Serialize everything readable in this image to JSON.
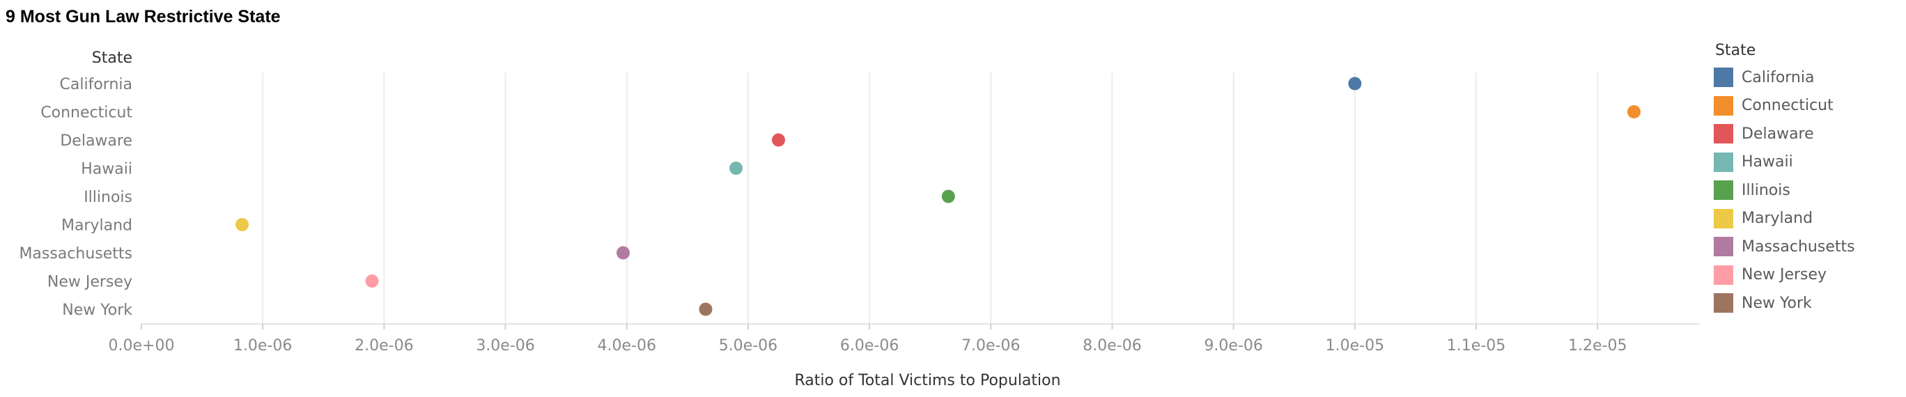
{
  "chart_data": {
    "type": "scatter",
    "title": "9 Most Gun Law Restrictive State",
    "ylabel": "State",
    "xlabel": "Ratio of Total Victims to Population",
    "xlim": [
      0,
      1.29e-05
    ],
    "xticks": [
      0,
      1e-06,
      2e-06,
      3e-06,
      4e-06,
      5e-06,
      6e-06,
      7e-06,
      8e-06,
      9e-06,
      1e-05,
      1.1e-05,
      1.2e-05
    ],
    "xtick_labels": [
      "0.0e+00",
      "1.0e-06",
      "2.0e-06",
      "3.0e-06",
      "4.0e-06",
      "5.0e-06",
      "6.0e-06",
      "7.0e-06",
      "8.0e-06",
      "9.0e-06",
      "1.0e-05",
      "1.1e-05",
      "1.2e-05"
    ],
    "grid": true,
    "legend_title": "State",
    "legend_position": "right",
    "categories": [
      "California",
      "Connecticut",
      "Delaware",
      "Hawaii",
      "Illinois",
      "Maryland",
      "Massachusetts",
      "New Jersey",
      "New York"
    ],
    "values": [
      1e-05,
      1.23e-05,
      5.25e-06,
      4.9e-06,
      6.65e-06,
      8.3e-07,
      3.97e-06,
      1.9e-06,
      4.65e-06
    ],
    "colors": [
      "#4e79a7",
      "#f28e2b",
      "#e15759",
      "#76b7b2",
      "#59a14f",
      "#edc948",
      "#b07aa1",
      "#ff9da7",
      "#9c755f"
    ]
  }
}
